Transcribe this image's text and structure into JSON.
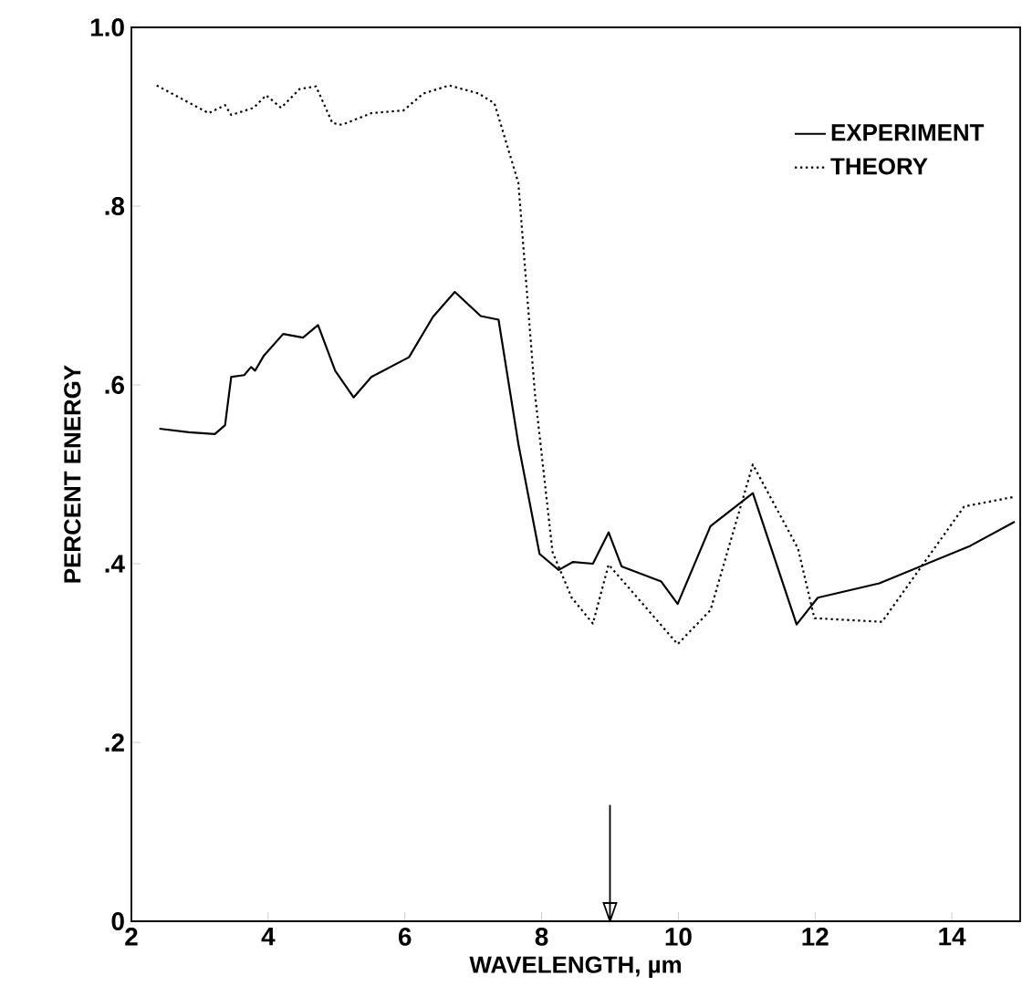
{
  "chart_data": {
    "type": "line",
    "xlabel": "WAVELENGTH, µm",
    "ylabel": "PERCENT ENERGY",
    "xlim": [
      2,
      15
    ],
    "ylim": [
      0,
      1.0
    ],
    "xticks": [
      2,
      4,
      6,
      8,
      10,
      12,
      14
    ],
    "yticks": [
      0,
      {
        "value": 0.2,
        "label": ".2"
      },
      {
        "value": 0.4,
        "label": ".4"
      },
      {
        "value": 0.6,
        "label": ".6"
      },
      {
        "value": 0.8,
        "label": ".8"
      },
      {
        "value": 1.0,
        "label": "1.0"
      }
    ],
    "legend": "top right",
    "grid": false,
    "ref_lines": [
      {
        "axis": "x",
        "value": 9
      }
    ],
    "series": [
      {
        "name": "EXPERIMENT",
        "color": "#000000",
        "line_style": "solid",
        "x": [
          2.41,
          2.84,
          3.22,
          3.37,
          3.46,
          3.65,
          3.75,
          3.81,
          3.94,
          4.22,
          4.51,
          4.73,
          4.98,
          5.25,
          5.51,
          6.06,
          6.41,
          6.73,
          7.11,
          7.37,
          7.66,
          7.97,
          8.25,
          8.46,
          8.75,
          8.98,
          9.17,
          9.75,
          9.99,
          10.47,
          11.09,
          11.73,
          12.04,
          12.94,
          14.27,
          14.92
        ],
        "values": [
          0.551,
          0.547,
          0.545,
          0.555,
          0.609,
          0.611,
          0.62,
          0.616,
          0.633,
          0.657,
          0.653,
          0.667,
          0.616,
          0.586,
          0.609,
          0.631,
          0.676,
          0.704,
          0.677,
          0.673,
          0.534,
          0.411,
          0.393,
          0.402,
          0.4,
          0.435,
          0.397,
          0.38,
          0.355,
          0.442,
          0.479,
          0.332,
          0.362,
          0.378,
          0.42,
          0.447
        ]
      },
      {
        "name": "THEORY",
        "color": "#000000",
        "line_style": "dotted",
        "x": [
          2.37,
          3.13,
          3.37,
          3.46,
          3.79,
          3.97,
          4.19,
          4.46,
          4.7,
          4.94,
          5.08,
          5.51,
          5.98,
          6.27,
          6.65,
          7.08,
          7.31,
          7.66,
          7.9,
          8.16,
          8.44,
          8.75,
          8.98,
          9.99,
          10.47,
          11.09,
          11.75,
          11.99,
          12.98,
          14.18,
          14.93
        ],
        "values": [
          0.935,
          0.904,
          0.913,
          0.902,
          0.91,
          0.924,
          0.91,
          0.931,
          0.934,
          0.893,
          0.891,
          0.904,
          0.907,
          0.926,
          0.935,
          0.926,
          0.915,
          0.826,
          0.592,
          0.413,
          0.362,
          0.333,
          0.399,
          0.31,
          0.348,
          0.511,
          0.417,
          0.339,
          0.335,
          0.464,
          0.475
        ]
      }
    ]
  }
}
